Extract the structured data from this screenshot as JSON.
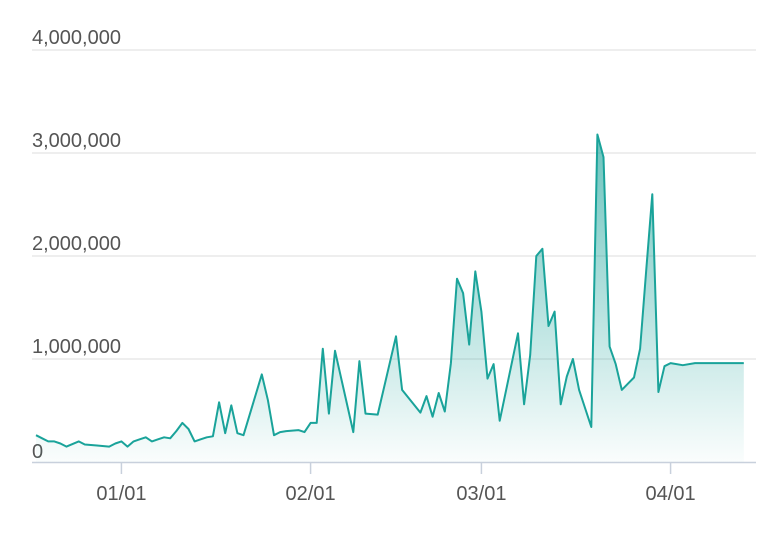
{
  "colors": {
    "line": "#1aa39a",
    "area_top": "#1aa39a",
    "grid": "#dcdcdc",
    "axis": "#c8d0dc",
    "text": "#555555"
  },
  "chart_data": {
    "type": "area",
    "title": "",
    "xlabel": "",
    "ylabel": "",
    "ylim": [
      0,
      4000000
    ],
    "grid": true,
    "legend": "none",
    "y_ticks": [
      {
        "value": 0,
        "label": "0"
      },
      {
        "value": 1000000,
        "label": "1,000,000"
      },
      {
        "value": 2000000,
        "label": "2,000,000"
      },
      {
        "value": 3000000,
        "label": "3,000,000"
      },
      {
        "value": 4000000,
        "label": "4,000,000"
      }
    ],
    "x_ticks": [
      {
        "date": "2019-01-01",
        "label": "01/01"
      },
      {
        "date": "2019-02-01",
        "label": "02/01"
      },
      {
        "date": "2019-03-01",
        "label": "03/01"
      },
      {
        "date": "2019-04-01",
        "label": "04/01"
      }
    ],
    "xlim": [
      "2018-12-18",
      "2019-04-15"
    ],
    "series": [
      {
        "x": [
          "2018-12-18",
          "2018-12-19",
          "2018-12-20",
          "2018-12-21",
          "2018-12-22",
          "2018-12-23",
          "2018-12-25",
          "2018-12-26",
          "2018-12-28",
          "2018-12-30",
          "2018-12-31",
          "2019-01-01",
          "2019-01-02",
          "2019-01-03",
          "2019-01-04",
          "2019-01-05",
          "2019-01-06",
          "2019-01-07",
          "2019-01-08",
          "2019-01-09",
          "2019-01-10",
          "2019-01-11",
          "2019-01-12",
          "2019-01-13",
          "2019-01-14",
          "2019-01-15",
          "2019-01-16",
          "2019-01-17",
          "2019-01-18",
          "2019-01-19",
          "2019-01-20",
          "2019-01-21",
          "2019-01-24",
          "2019-01-25",
          "2019-01-26",
          "2019-01-27",
          "2019-01-28",
          "2019-01-30",
          "2019-01-31",
          "2019-02-01",
          "2019-02-02",
          "2019-02-03",
          "2019-02-04",
          "2019-02-05",
          "2019-02-08",
          "2019-02-09",
          "2019-02-10",
          "2019-02-12",
          "2019-02-15",
          "2019-02-16",
          "2019-02-19",
          "2019-02-20",
          "2019-02-21",
          "2019-02-22",
          "2019-02-23",
          "2019-02-24",
          "2019-02-25",
          "2019-02-26",
          "2019-02-27",
          "2019-02-28",
          "2019-03-01",
          "2019-03-02",
          "2019-03-03",
          "2019-03-04",
          "2019-03-07",
          "2019-03-08",
          "2019-03-09",
          "2019-03-10",
          "2019-03-11",
          "2019-03-12",
          "2019-03-13",
          "2019-03-14",
          "2019-03-15",
          "2019-03-16",
          "2019-03-17",
          "2019-03-19",
          "2019-03-20",
          "2019-03-21",
          "2019-03-22",
          "2019-03-23",
          "2019-03-24",
          "2019-03-25",
          "2019-03-26",
          "2019-03-27",
          "2019-03-28",
          "2019-03-29",
          "2019-03-30",
          "2019-03-31",
          "2019-04-01",
          "2019-04-03",
          "2019-04-05",
          "2019-04-06",
          "2019-04-07",
          "2019-04-08",
          "2019-04-09",
          "2019-04-10",
          "2019-04-11",
          "2019-04-12",
          "2019-04-13"
        ],
        "values": [
          260000,
          230000,
          200000,
          200000,
          180000,
          150000,
          200000,
          170000,
          160000,
          150000,
          180000,
          200000,
          150000,
          200000,
          220000,
          240000,
          200000,
          220000,
          240000,
          230000,
          300000,
          380000,
          320000,
          200000,
          220000,
          240000,
          250000,
          580000,
          280000,
          550000,
          280000,
          260000,
          850000,
          600000,
          260000,
          290000,
          300000,
          310000,
          290000,
          380000,
          380000,
          1100000,
          470000,
          1080000,
          290000,
          980000,
          470000,
          460000,
          1220000,
          700000,
          480000,
          640000,
          440000,
          670000,
          490000,
          960000,
          1780000,
          1640000,
          1140000,
          1850000,
          1460000,
          810000,
          950000,
          400000,
          1250000,
          560000,
          1040000,
          2000000,
          2070000,
          1320000,
          1460000,
          560000,
          830000,
          1000000,
          700000,
          340000,
          3180000,
          2960000,
          1120000,
          950000,
          700000,
          760000,
          820000,
          1100000,
          1860000,
          2600000,
          680000,
          930000,
          960000,
          940000,
          960000,
          960000,
          960000,
          960000,
          960000,
          960000,
          960000,
          960000,
          960000
        ]
      }
    ]
  }
}
